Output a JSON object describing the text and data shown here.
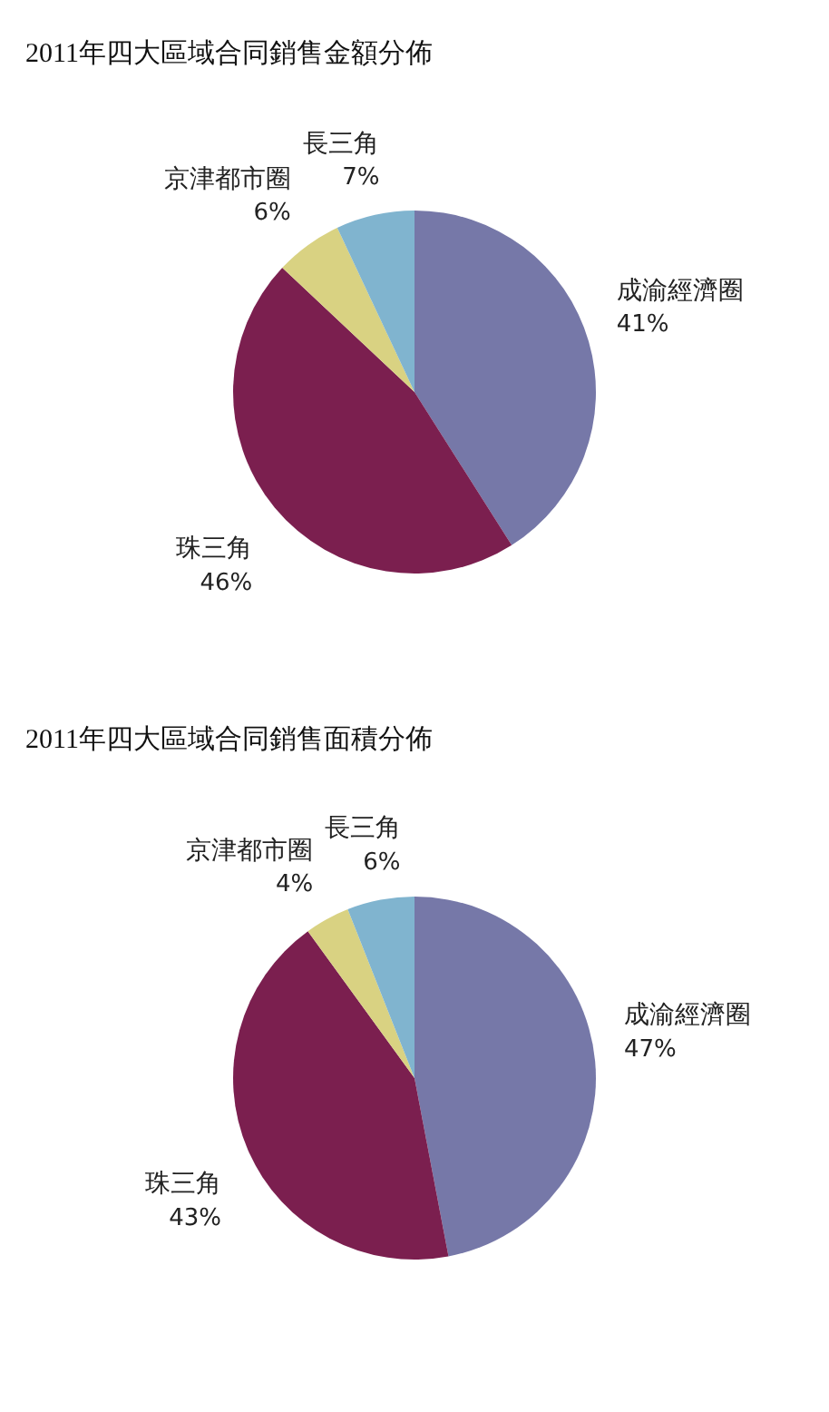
{
  "chart_data": [
    {
      "type": "pie",
      "title": "2011年四大區域合同銷售金額分佈",
      "categories": [
        "成渝經濟圈",
        "珠三角",
        "京津都市圈",
        "長三角"
      ],
      "values": [
        41,
        46,
        6,
        7
      ],
      "colors": [
        "#7678a8",
        "#7b1f4f",
        "#d9d282",
        "#80b4cf"
      ],
      "value_labels": [
        "41%",
        "46%",
        "6%",
        "7%"
      ]
    },
    {
      "type": "pie",
      "title": "2011年四大區域合同銷售面積分佈",
      "categories": [
        "成渝經濟圈",
        "珠三角",
        "京津都市圈",
        "長三角"
      ],
      "values": [
        47,
        43,
        4,
        6
      ],
      "colors": [
        "#7678a8",
        "#7b1f4f",
        "#d9d282",
        "#80b4cf"
      ],
      "value_labels": [
        "47%",
        "43%",
        "4%",
        "6%"
      ]
    }
  ]
}
